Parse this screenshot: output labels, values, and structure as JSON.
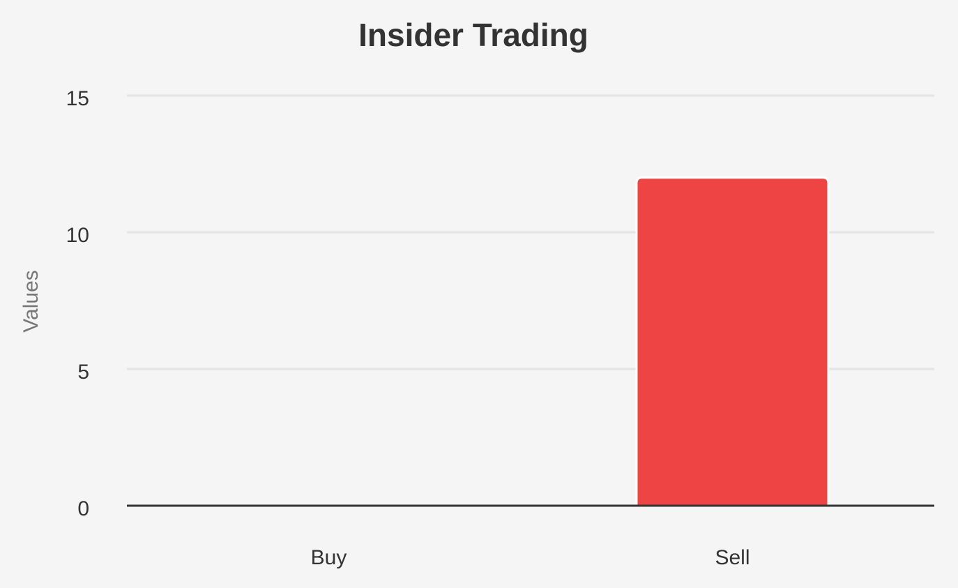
{
  "chart_data": {
    "type": "bar",
    "title": "Insider Trading",
    "ylabel": "Values",
    "categories": [
      "Buy",
      "Sell"
    ],
    "values": [
      0,
      12
    ],
    "color": "#ef4444",
    "ylim": [
      0,
      15
    ],
    "yticks": [
      0,
      5,
      10,
      15
    ],
    "grid": true
  }
}
